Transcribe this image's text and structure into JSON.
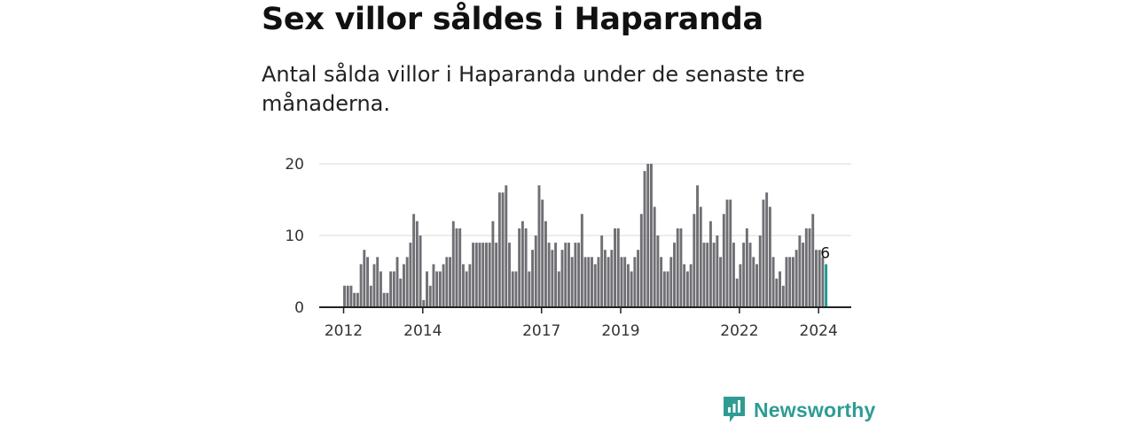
{
  "title": "Sex villor såldes i Haparanda",
  "subtitle": "Antal sålda villor i Haparanda under de senaste tre månaderna.",
  "brand": {
    "name": "Newsworthy",
    "color": "#2e9c94",
    "logo_icon": "bar-chart-speech-bubble-icon"
  },
  "colors": {
    "bar": "#6f6f74",
    "highlight": "#199a93",
    "grid": "#d9d9d9",
    "axis": "#222222"
  },
  "chart_data": {
    "type": "bar",
    "title": "Sex villor såldes i Haparanda",
    "xlabel": "",
    "ylabel": "",
    "ylim": [
      0,
      20
    ],
    "yticks": [
      0,
      10,
      20
    ],
    "start": "2012-01",
    "frequency": "monthly",
    "xticks": [
      {
        "label": "2012",
        "index": 0
      },
      {
        "label": "2014",
        "index": 24
      },
      {
        "label": "2017",
        "index": 60
      },
      {
        "label": "2019",
        "index": 84
      },
      {
        "label": "2022",
        "index": 120
      },
      {
        "label": "2024",
        "index": 144
      }
    ],
    "values": [
      3,
      3,
      3,
      2,
      2,
      6,
      8,
      7,
      3,
      6,
      7,
      5,
      2,
      2,
      5,
      5,
      7,
      4,
      6,
      7,
      9,
      13,
      12,
      10,
      1,
      5,
      3,
      6,
      5,
      5,
      6,
      7,
      7,
      12,
      11,
      11,
      6,
      5,
      6,
      9,
      9,
      9,
      9,
      9,
      9,
      12,
      9,
      16,
      16,
      17,
      9,
      5,
      5,
      11,
      12,
      11,
      5,
      8,
      10,
      17,
      15,
      12,
      9,
      8,
      9,
      5,
      8,
      9,
      9,
      7,
      9,
      9,
      13,
      7,
      7,
      7,
      6,
      7,
      10,
      8,
      7,
      8,
      11,
      11,
      7,
      7,
      6,
      5,
      7,
      8,
      13,
      19,
      20,
      20,
      14,
      10,
      7,
      5,
      5,
      7,
      9,
      11,
      11,
      6,
      5,
      6,
      13,
      17,
      14,
      9,
      9,
      12,
      9,
      10,
      7,
      13,
      15,
      15,
      9,
      4,
      6,
      9,
      11,
      9,
      7,
      6,
      10,
      15,
      16,
      14,
      7,
      4,
      5,
      3,
      7,
      7,
      7,
      8,
      10,
      9,
      11,
      11,
      13,
      8,
      8,
      7,
      6
    ],
    "highlight_index": 146,
    "highlight_label": "6"
  }
}
